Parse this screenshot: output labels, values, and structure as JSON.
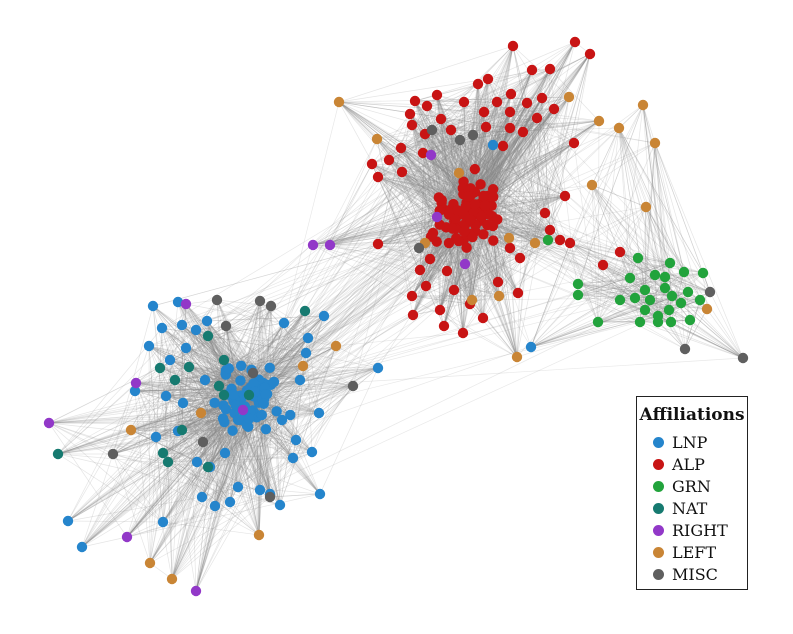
{
  "legend": {
    "title": "Affiliations",
    "items": [
      {
        "label": "LNP",
        "color": "#2585cc"
      },
      {
        "label": "ALP",
        "color": "#c81414"
      },
      {
        "label": "GRN",
        "color": "#22a33c"
      },
      {
        "label": "NAT",
        "color": "#167a70"
      },
      {
        "label": "RIGHT",
        "color": "#9238c8"
      },
      {
        "label": "LEFT",
        "color": "#c98535"
      },
      {
        "label": "MISC",
        "color": "#5f5f5f"
      }
    ]
  },
  "edge_color": "#8a8a8a"
}
